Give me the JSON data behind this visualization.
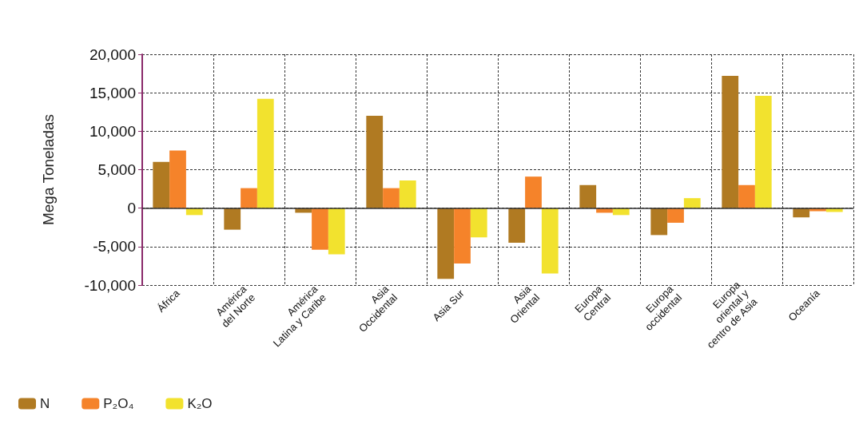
{
  "chart_data": {
    "type": "bar",
    "ylabel": "Mega Toneladas",
    "categories": [
      "África",
      "América\ndel Norte",
      "América\nLatina y Caribe",
      "Asia\nOccidental",
      "Asia Sur",
      "Asia\nOriental",
      "Europa\nCentral",
      "Europa\noccidental",
      "Europa\noriental y\ncentro de Asia",
      "Oceanía"
    ],
    "series": [
      {
        "name": "N",
        "color": "#b07a22",
        "values": [
          6000,
          -2800,
          -600,
          12000,
          -9200,
          -4500,
          3000,
          -3500,
          17200,
          -1200
        ]
      },
      {
        "name": "P₂O₄",
        "color": "#f5832a",
        "values": [
          7500,
          2600,
          -5400,
          2600,
          -7200,
          4100,
          -600,
          -1900,
          3000,
          -400
        ]
      },
      {
        "name": "K₂O",
        "color": "#f2e22e",
        "values": [
          -900,
          14200,
          -6000,
          3600,
          -3800,
          -8500,
          -900,
          1300,
          14600,
          -500
        ]
      }
    ],
    "ylim": [
      -10000,
      20000
    ],
    "yticks": [
      {
        "value": -10000,
        "label": "-10,000"
      },
      {
        "value": -5000,
        "label": "-5,000"
      },
      0,
      {
        "value": 5000,
        "label": "5,000"
      },
      {
        "value": 10000,
        "label": "10,000"
      },
      {
        "value": 15000,
        "label": "15,000"
      },
      {
        "value": 20000,
        "label": "20,000"
      }
    ],
    "grid": true,
    "legend": "bottom left"
  }
}
